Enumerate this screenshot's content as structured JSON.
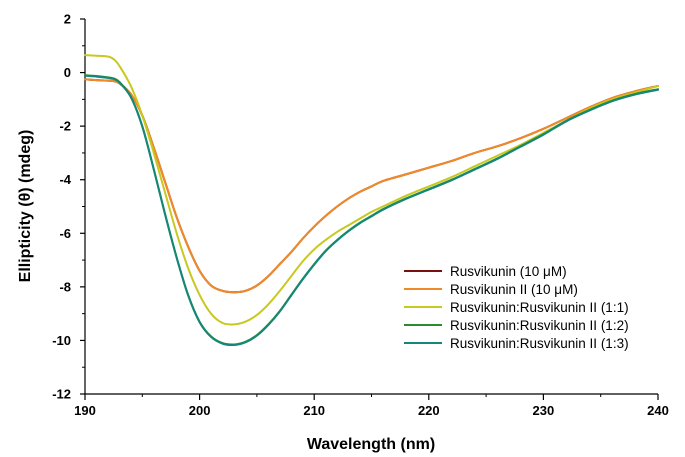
{
  "chart_data": {
    "type": "line",
    "title": "",
    "xlabel": "Wavelength (nm)",
    "ylabel": "Ellipticity (θ) (mdeg)",
    "xlim": [
      190,
      240
    ],
    "ylim": [
      -12,
      2
    ],
    "xticks": [
      190,
      200,
      210,
      220,
      230,
      240
    ],
    "yticks": [
      2,
      0,
      -2,
      -4,
      -6,
      -8,
      -10,
      -12
    ],
    "grid": false,
    "legend_position": "bottom-right",
    "series": [
      {
        "name": "Rusvikunin (10 μM)",
        "color": "#7b1010",
        "x": [
          190,
          191,
          192,
          192.5,
          193,
          194,
          195,
          196,
          197,
          198,
          199,
          200,
          201,
          202,
          203,
          204,
          205,
          206,
          207,
          208,
          209,
          210,
          211,
          212,
          213,
          214,
          215,
          216,
          218,
          220,
          222,
          224,
          226,
          228,
          230,
          232,
          234,
          236,
          238,
          240
        ],
        "y": [
          -0.25,
          -0.28,
          -0.3,
          -0.32,
          -0.4,
          -0.8,
          -1.6,
          -2.8,
          -4.1,
          -5.4,
          -6.5,
          -7.4,
          -7.95,
          -8.15,
          -8.2,
          -8.15,
          -7.95,
          -7.6,
          -7.15,
          -6.7,
          -6.2,
          -5.75,
          -5.35,
          -5.0,
          -4.7,
          -4.45,
          -4.25,
          -4.05,
          -3.8,
          -3.55,
          -3.3,
          -3.0,
          -2.75,
          -2.45,
          -2.1,
          -1.7,
          -1.3,
          -0.95,
          -0.7,
          -0.5
        ]
      },
      {
        "name": "Rusvikunin II (10 μM)",
        "color": "#f08a28",
        "x": [
          190,
          191,
          192,
          192.5,
          193,
          194,
          195,
          196,
          197,
          198,
          199,
          200,
          201,
          202,
          203,
          204,
          205,
          206,
          207,
          208,
          209,
          210,
          211,
          212,
          213,
          214,
          215,
          216,
          218,
          220,
          222,
          224,
          226,
          228,
          230,
          232,
          234,
          236,
          238,
          240
        ],
        "y": [
          -0.25,
          -0.28,
          -0.3,
          -0.32,
          -0.4,
          -0.8,
          -1.6,
          -2.8,
          -4.1,
          -5.4,
          -6.5,
          -7.4,
          -7.95,
          -8.15,
          -8.2,
          -8.15,
          -7.95,
          -7.6,
          -7.15,
          -6.7,
          -6.2,
          -5.75,
          -5.35,
          -5.0,
          -4.7,
          -4.45,
          -4.25,
          -4.05,
          -3.8,
          -3.55,
          -3.3,
          -3.0,
          -2.75,
          -2.45,
          -2.1,
          -1.7,
          -1.3,
          -0.95,
          -0.7,
          -0.5
        ]
      },
      {
        "name": "Rusvikunin:Rusvikunin II (1:1)",
        "color": "#c8c81e",
        "x": [
          190,
          191,
          192,
          192.5,
          193,
          194,
          195,
          196,
          197,
          198,
          199,
          200,
          201,
          202,
          203,
          204,
          205,
          206,
          207,
          208,
          209,
          210,
          211,
          212,
          213,
          214,
          215,
          216,
          218,
          220,
          222,
          224,
          226,
          228,
          230,
          232,
          234,
          236,
          238,
          240
        ],
        "y": [
          0.65,
          0.63,
          0.6,
          0.5,
          0.25,
          -0.5,
          -1.6,
          -3.0,
          -4.5,
          -6.0,
          -7.3,
          -8.3,
          -9.0,
          -9.35,
          -9.4,
          -9.3,
          -9.05,
          -8.65,
          -8.15,
          -7.6,
          -7.05,
          -6.6,
          -6.25,
          -5.95,
          -5.7,
          -5.45,
          -5.2,
          -5.0,
          -4.6,
          -4.25,
          -3.9,
          -3.5,
          -3.1,
          -2.7,
          -2.25,
          -1.8,
          -1.35,
          -1.0,
          -0.75,
          -0.5
        ]
      },
      {
        "name": "Rusvikunin:Rusvikunin II (1:2)",
        "color": "#2a8c2a",
        "x": [
          190,
          191,
          192,
          192.5,
          193,
          194,
          195,
          196,
          197,
          198,
          199,
          200,
          201,
          202,
          203,
          204,
          205,
          206,
          207,
          208,
          209,
          210,
          211,
          212,
          213,
          214,
          215,
          216,
          218,
          220,
          222,
          224,
          226,
          228,
          230,
          232,
          234,
          236,
          238,
          240
        ],
        "y": [
          -0.1,
          -0.13,
          -0.18,
          -0.22,
          -0.35,
          -0.9,
          -2.0,
          -3.6,
          -5.3,
          -6.9,
          -8.3,
          -9.3,
          -9.85,
          -10.1,
          -10.15,
          -10.05,
          -9.8,
          -9.4,
          -8.9,
          -8.3,
          -7.7,
          -7.15,
          -6.65,
          -6.25,
          -5.9,
          -5.6,
          -5.35,
          -5.1,
          -4.7,
          -4.35,
          -4.0,
          -3.6,
          -3.2,
          -2.75,
          -2.3,
          -1.8,
          -1.4,
          -1.05,
          -0.8,
          -0.62
        ]
      },
      {
        "name": "Rusvikunin:Rusvikunin II (1:3)",
        "color": "#14877a",
        "x": [
          190,
          191,
          192,
          192.5,
          193,
          194,
          195,
          196,
          197,
          198,
          199,
          200,
          201,
          202,
          203,
          204,
          205,
          206,
          207,
          208,
          209,
          210,
          211,
          212,
          213,
          214,
          215,
          216,
          218,
          220,
          222,
          224,
          226,
          228,
          230,
          232,
          234,
          236,
          238,
          240
        ],
        "y": [
          -0.12,
          -0.15,
          -0.2,
          -0.24,
          -0.37,
          -0.92,
          -2.02,
          -3.62,
          -5.32,
          -6.92,
          -8.32,
          -9.32,
          -9.87,
          -10.12,
          -10.17,
          -10.07,
          -9.82,
          -9.42,
          -8.92,
          -8.32,
          -7.72,
          -7.17,
          -6.67,
          -6.27,
          -5.92,
          -5.62,
          -5.37,
          -5.12,
          -4.72,
          -4.37,
          -4.02,
          -3.62,
          -3.22,
          -2.77,
          -2.32,
          -1.82,
          -1.42,
          -1.07,
          -0.82,
          -0.64
        ]
      }
    ]
  }
}
